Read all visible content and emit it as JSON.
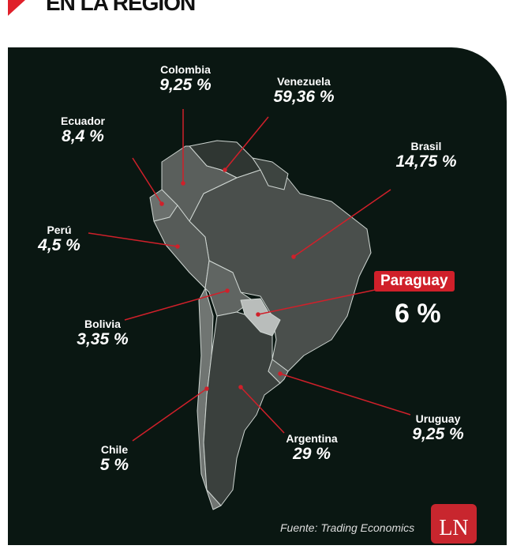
{
  "title": "EN LA REGION",
  "source": "Fuente: Trading Economics",
  "logo": "LN",
  "colors": {
    "background": "#0a1712",
    "highlight": "#d0202a"
  },
  "countries": [
    {
      "name": "Colombia",
      "value": "9,25 %"
    },
    {
      "name": "Venezuela",
      "value": "59,36 %"
    },
    {
      "name": "Ecuador",
      "value": "8,4 %"
    },
    {
      "name": "Brasil",
      "value": "14,75 %"
    },
    {
      "name": "Perú",
      "value": "4,5 %"
    },
    {
      "name": "Bolivia",
      "value": "3,35 %"
    },
    {
      "name": "Uruguay",
      "value": "9,25 %"
    },
    {
      "name": "Chile",
      "value": "5 %"
    },
    {
      "name": "Argentina",
      "value": "29 %"
    }
  ],
  "highlight": {
    "name": "Paraguay",
    "value": "6 %"
  }
}
